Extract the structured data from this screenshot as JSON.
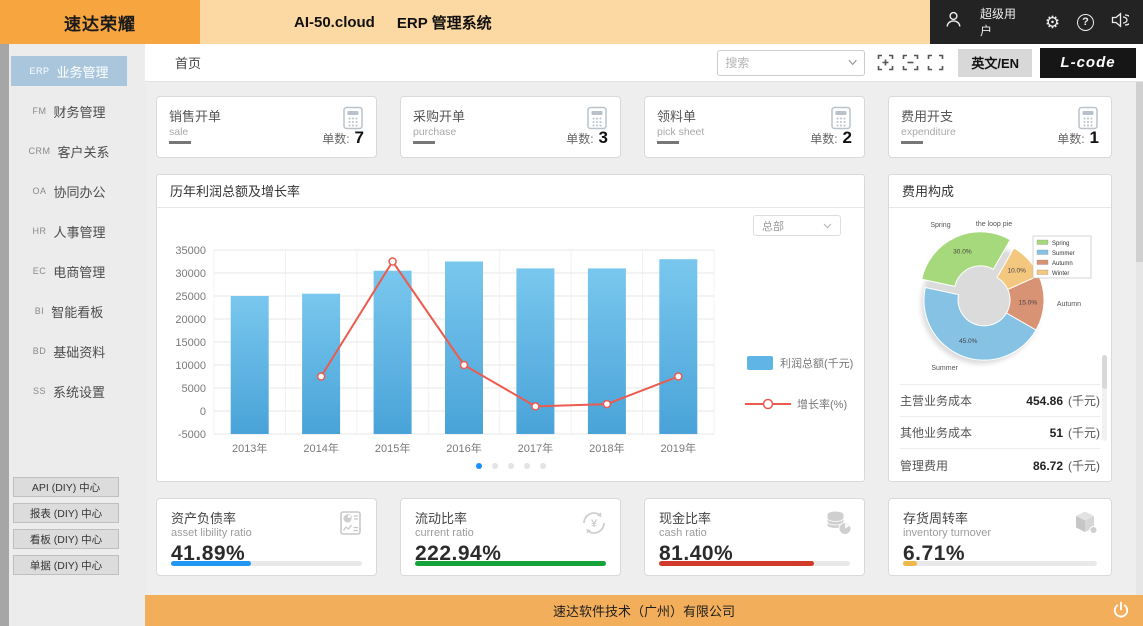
{
  "topbar": {
    "logo": "速达荣耀",
    "product": "AI-50.cloud",
    "system": "ERP 管理系统",
    "username": "超级用户"
  },
  "sidebar": {
    "items": [
      {
        "code": "ERP",
        "label": "业务管理",
        "active": true
      },
      {
        "code": "FM",
        "label": "财务管理",
        "active": false
      },
      {
        "code": "CRM",
        "label": "客户关系",
        "active": false
      },
      {
        "code": "OA",
        "label": "协同办公",
        "active": false
      },
      {
        "code": "HR",
        "label": "人事管理",
        "active": false
      },
      {
        "code": "EC",
        "label": "电商管理",
        "active": false
      },
      {
        "code": "BI",
        "label": "智能看板",
        "active": false
      },
      {
        "code": "BD",
        "label": "基础资料",
        "active": false
      },
      {
        "code": "SS",
        "label": "系统设置",
        "active": false
      }
    ],
    "diy_buttons": [
      {
        "label": "API (DIY) 中心"
      },
      {
        "label": "报表 (DIY) 中心"
      },
      {
        "label": "看板 (DIY) 中心"
      },
      {
        "label": "单据 (DIY) 中心"
      }
    ]
  },
  "toolbar": {
    "home_tab": "首页",
    "search_placeholder": "搜索",
    "lang_button": "英文/EN",
    "lcode_button": "L-code"
  },
  "stat_cards": [
    {
      "title": "销售开单",
      "subtitle": "sale",
      "count_label": "单数:",
      "count": "7"
    },
    {
      "title": "采购开单",
      "subtitle": "purchase",
      "count_label": "单数:",
      "count": "3"
    },
    {
      "title": "领料单",
      "subtitle": "pick sheet",
      "count_label": "单数:",
      "count": "2"
    },
    {
      "title": "费用开支",
      "subtitle": "expenditure",
      "count_label": "单数:",
      "count": "1"
    }
  ],
  "profit_panel": {
    "title": "历年利润总额及增长率",
    "org_dropdown": "总部",
    "pagination_dots": 5,
    "active_dot": 1
  },
  "expense_panel": {
    "title": "费用构成",
    "rows": [
      {
        "label": "主营业务成本",
        "value": "454.86",
        "unit": "(千元)"
      },
      {
        "label": "其他业务成本",
        "value": "51",
        "unit": "(千元)"
      },
      {
        "label": "管理费用",
        "value": "86.72",
        "unit": "(千元)"
      }
    ]
  },
  "chart_data": [
    {
      "type": "bar",
      "title": "历年利润总额及增长率",
      "categories": [
        "2013年",
        "2014年",
        "2015年",
        "2016年",
        "2017年",
        "2018年",
        "2019年"
      ],
      "series": [
        {
          "name": "利润总额(千元)",
          "type": "bar",
          "color": "#5fb6e6",
          "values": [
            25000,
            25500,
            30500,
            32500,
            31000,
            31000,
            33000
          ]
        },
        {
          "name": "增长率(%)",
          "type": "line",
          "color": "#ec5b4f",
          "values": [
            null,
            7500,
            32500,
            10000,
            1000,
            1500,
            7500
          ],
          "note": "line plotted against the same left axis scale as shown"
        }
      ],
      "ylim": [
        -5000,
        35000
      ],
      "yticks": [
        35000,
        30000,
        25000,
        20000,
        15000,
        10000,
        5000,
        0,
        -5000
      ],
      "grid": true,
      "legend_position": "right"
    },
    {
      "type": "pie",
      "title": "the loop pie",
      "labels": [
        "Spring",
        "Summer",
        "Autumn",
        "Winter"
      ],
      "values": [
        30.0,
        45.0,
        15.0,
        10.0
      ],
      "colors": [
        "#a6d97c",
        "#85c2e4",
        "#d89274",
        "#f3c77e"
      ],
      "donut": true,
      "explode_index": 0,
      "start_angle": 60,
      "legend_position": "top-right"
    }
  ],
  "kpi_cards": [
    {
      "title": "资产负债率",
      "subtitle": "asset libility ratio",
      "value": "41.89%",
      "bar_pct": 42,
      "bar_color": "#2196f3"
    },
    {
      "title": "流动比率",
      "subtitle": "current ratio",
      "value": "222.94%",
      "bar_pct": 100,
      "bar_color": "#17a33c"
    },
    {
      "title": "现金比率",
      "subtitle": "cash ratio",
      "value": "81.40%",
      "bar_pct": 81,
      "bar_color": "#d03b2b"
    },
    {
      "title": "存货周转率",
      "subtitle": "inventory turnover",
      "value": "6.71%",
      "bar_pct": 7,
      "bar_color": "#f2b84a"
    }
  ],
  "footer": {
    "company": "速达软件技术（广州）有限公司"
  }
}
